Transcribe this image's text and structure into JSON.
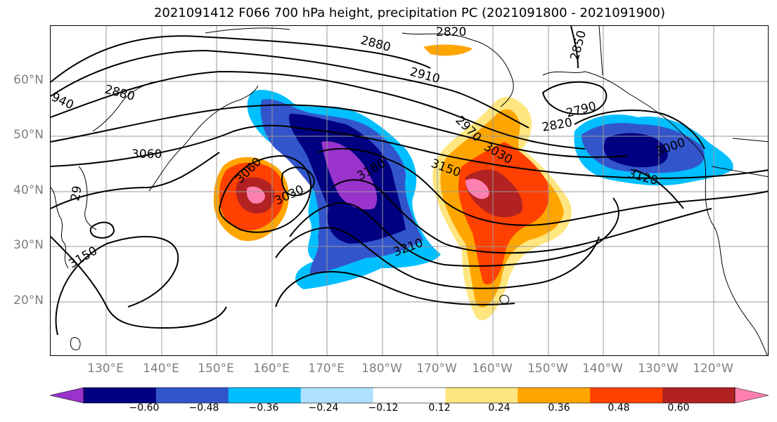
{
  "title": "2021091412 F066 700 hPa height, precipitation PC (2021091800 - 2021091900)",
  "lat_labels": [
    "60°N",
    "50°N",
    "40°N",
    "30°N",
    "20°N"
  ],
  "lon_labels": [
    "130°E",
    "140°E",
    "150°E",
    "160°E",
    "170°E",
    "180°W",
    "170°W",
    "160°W",
    "150°W",
    "140°W",
    "130°W",
    "120°W"
  ],
  "contour_labels": [
    "2820",
    "2850",
    "2880",
    "2880",
    "2910",
    "940",
    "2790",
    "2820",
    "2970",
    "3030",
    "3060",
    "3060",
    "3150",
    "3180",
    "3030",
    "3000",
    "3120",
    "3150",
    "3210",
    "29"
  ],
  "colorbar": {
    "colors": [
      "#9933cc",
      "#000080",
      "#3355cc",
      "#00bfff",
      "#b0e0ff",
      "#ffffff",
      "#ffe680",
      "#ffa500",
      "#ff4000",
      "#b22222",
      "#ff80b0"
    ],
    "tick_labels": [
      "−0.60",
      "−0.48",
      "−0.36",
      "−0.24",
      "−0.12",
      "0.12",
      "0.24",
      "0.36",
      "0.48",
      "0.60"
    ]
  },
  "colors": {
    "contour": "#000000",
    "grid": "#999999",
    "coast": "#000000",
    "axis_labels": "#7f7f7f"
  }
}
